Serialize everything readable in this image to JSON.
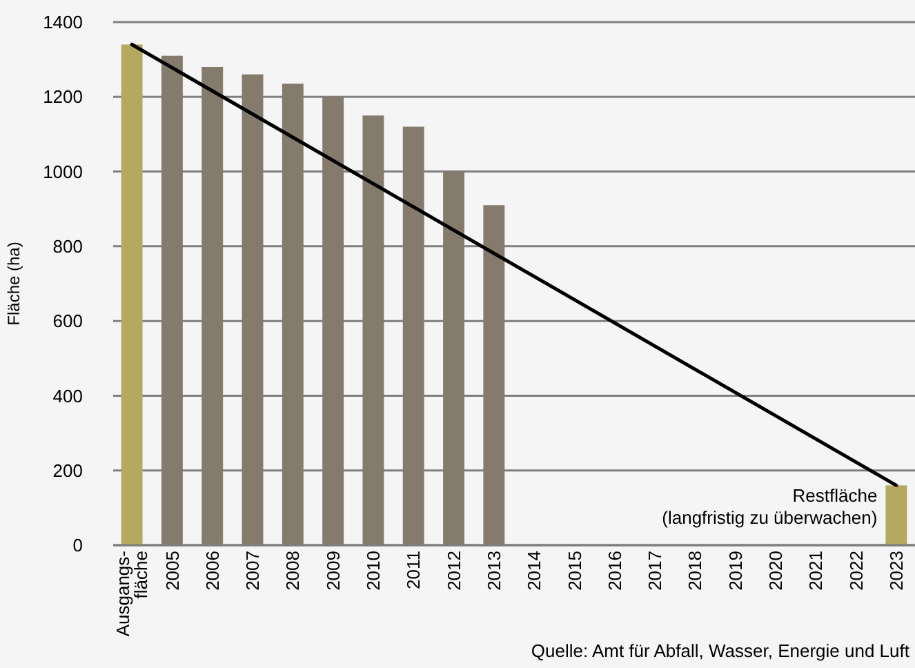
{
  "chart_data": {
    "type": "bar",
    "ylabel": "Fläche (ha)",
    "categories": [
      "Ausgangs-\nfläche",
      "2005",
      "2006",
      "2007",
      "2008",
      "2009",
      "2010",
      "2011",
      "2012",
      "2013",
      "2014",
      "2015",
      "2016",
      "2017",
      "2018",
      "2019",
      "2020",
      "2021",
      "2022",
      "2023"
    ],
    "series": [
      {
        "values": [
          1340,
          1310,
          1280,
          1260,
          1235,
          1200,
          1150,
          1120,
          1000,
          910,
          null,
          null,
          null,
          null,
          null,
          null,
          null,
          null,
          null,
          160
        ],
        "colors": [
          "#b5a962",
          "#857b6c",
          "#857b6c",
          "#857b6c",
          "#857b6c",
          "#857b6c",
          "#857b6c",
          "#857b6c",
          "#857b6c",
          "#857b6c",
          null,
          null,
          null,
          null,
          null,
          null,
          null,
          null,
          null,
          "#b5a962"
        ]
      },
      {
        "type": "line",
        "color": "#000000",
        "values": [
          1340,
          null,
          null,
          null,
          null,
          null,
          null,
          null,
          null,
          null,
          null,
          null,
          null,
          null,
          null,
          null,
          null,
          null,
          null,
          160
        ]
      }
    ],
    "ylim": [
      0,
      1400
    ],
    "yticks": [
      0,
      200,
      400,
      600,
      800,
      1000,
      1200,
      1400
    ],
    "grid": "y",
    "annotations": [
      {
        "text": "Restfläche\n(langfristig zu überwachen)",
        "x": "2023",
        "y": 160
      },
      "Quelle: Amt für Abfall, Wasser, Energie und Luft"
    ]
  }
}
